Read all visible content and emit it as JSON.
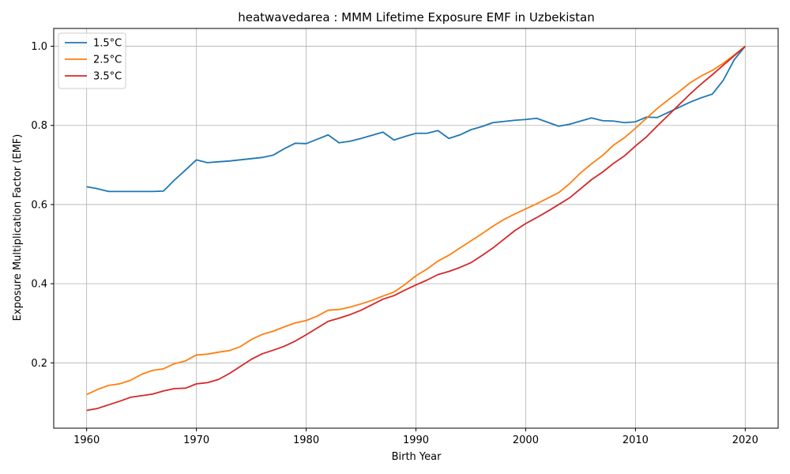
{
  "chart_data": {
    "type": "line",
    "title": "heatwavedarea : MMM Lifetime Exposure EMF in Uzbekistan",
    "xlabel": "Birth Year",
    "ylabel": "Exposure Multiplication Factor (EMF)",
    "xlim": [
      1957,
      2023
    ],
    "ylim": [
      0.035,
      1.045
    ],
    "xticks": [
      1960,
      1970,
      1980,
      1990,
      2000,
      2010,
      2020
    ],
    "yticks": [
      0.2,
      0.4,
      0.6,
      0.8,
      1.0
    ],
    "xtick_labels": [
      "1960",
      "1970",
      "1980",
      "1990",
      "2000",
      "2010",
      "2020"
    ],
    "ytick_labels": [
      "0.2",
      "0.4",
      "0.6",
      "0.8",
      "1.0"
    ],
    "grid": true,
    "legend_position": "top-left",
    "x": [
      1960,
      1961,
      1962,
      1963,
      1964,
      1965,
      1966,
      1967,
      1968,
      1969,
      1970,
      1971,
      1972,
      1973,
      1974,
      1975,
      1976,
      1977,
      1978,
      1979,
      1980,
      1981,
      1982,
      1983,
      1984,
      1985,
      1986,
      1987,
      1988,
      1989,
      1990,
      1991,
      1992,
      1993,
      1994,
      1995,
      1996,
      1997,
      1998,
      1999,
      2000,
      2001,
      2002,
      2003,
      2004,
      2005,
      2006,
      2007,
      2008,
      2009,
      2010,
      2011,
      2012,
      2013,
      2014,
      2015,
      2016,
      2017,
      2018,
      2019,
      2020
    ],
    "series": [
      {
        "name": "1.5°C",
        "color": "#1f77b4",
        "values": [
          0.645,
          0.64,
          0.633,
          0.633,
          0.633,
          0.633,
          0.633,
          0.634,
          0.662,
          0.687,
          0.713,
          0.706,
          0.708,
          0.71,
          0.713,
          0.716,
          0.719,
          0.725,
          0.741,
          0.755,
          0.754,
          0.765,
          0.776,
          0.756,
          0.76,
          0.767,
          0.775,
          0.783,
          0.763,
          0.772,
          0.78,
          0.78,
          0.787,
          0.767,
          0.776,
          0.789,
          0.797,
          0.807,
          0.81,
          0.813,
          0.815,
          0.818,
          0.808,
          0.798,
          0.803,
          0.811,
          0.819,
          0.812,
          0.811,
          0.807,
          0.809,
          0.821,
          0.82,
          0.833,
          0.846,
          0.859,
          0.87,
          0.879,
          0.914,
          0.966,
          1.0
        ]
      },
      {
        "name": "2.5°C",
        "color": "#ff7f0e",
        "values": [
          0.12,
          0.133,
          0.143,
          0.147,
          0.156,
          0.171,
          0.181,
          0.185,
          0.198,
          0.205,
          0.22,
          0.222,
          0.227,
          0.231,
          0.241,
          0.259,
          0.272,
          0.28,
          0.291,
          0.301,
          0.307,
          0.318,
          0.333,
          0.335,
          0.341,
          0.349,
          0.358,
          0.369,
          0.379,
          0.398,
          0.42,
          0.437,
          0.457,
          0.472,
          0.49,
          0.508,
          0.526,
          0.545,
          0.562,
          0.576,
          0.589,
          0.602,
          0.616,
          0.63,
          0.653,
          0.68,
          0.703,
          0.724,
          0.75,
          0.769,
          0.793,
          0.818,
          0.843,
          0.865,
          0.886,
          0.908,
          0.925,
          0.939,
          0.957,
          0.978,
          1.0
        ]
      },
      {
        "name": "3.5°C",
        "color": "#d62728",
        "values": [
          0.08,
          0.085,
          0.094,
          0.103,
          0.113,
          0.117,
          0.121,
          0.129,
          0.135,
          0.136,
          0.147,
          0.15,
          0.158,
          0.173,
          0.191,
          0.209,
          0.223,
          0.232,
          0.242,
          0.255,
          0.271,
          0.288,
          0.305,
          0.313,
          0.322,
          0.333,
          0.347,
          0.361,
          0.37,
          0.384,
          0.397,
          0.409,
          0.423,
          0.431,
          0.441,
          0.453,
          0.471,
          0.49,
          0.512,
          0.534,
          0.552,
          0.567,
          0.583,
          0.6,
          0.617,
          0.64,
          0.663,
          0.682,
          0.704,
          0.723,
          0.748,
          0.771,
          0.799,
          0.826,
          0.853,
          0.88,
          0.905,
          0.928,
          0.952,
          0.976,
          1.0
        ]
      }
    ]
  }
}
